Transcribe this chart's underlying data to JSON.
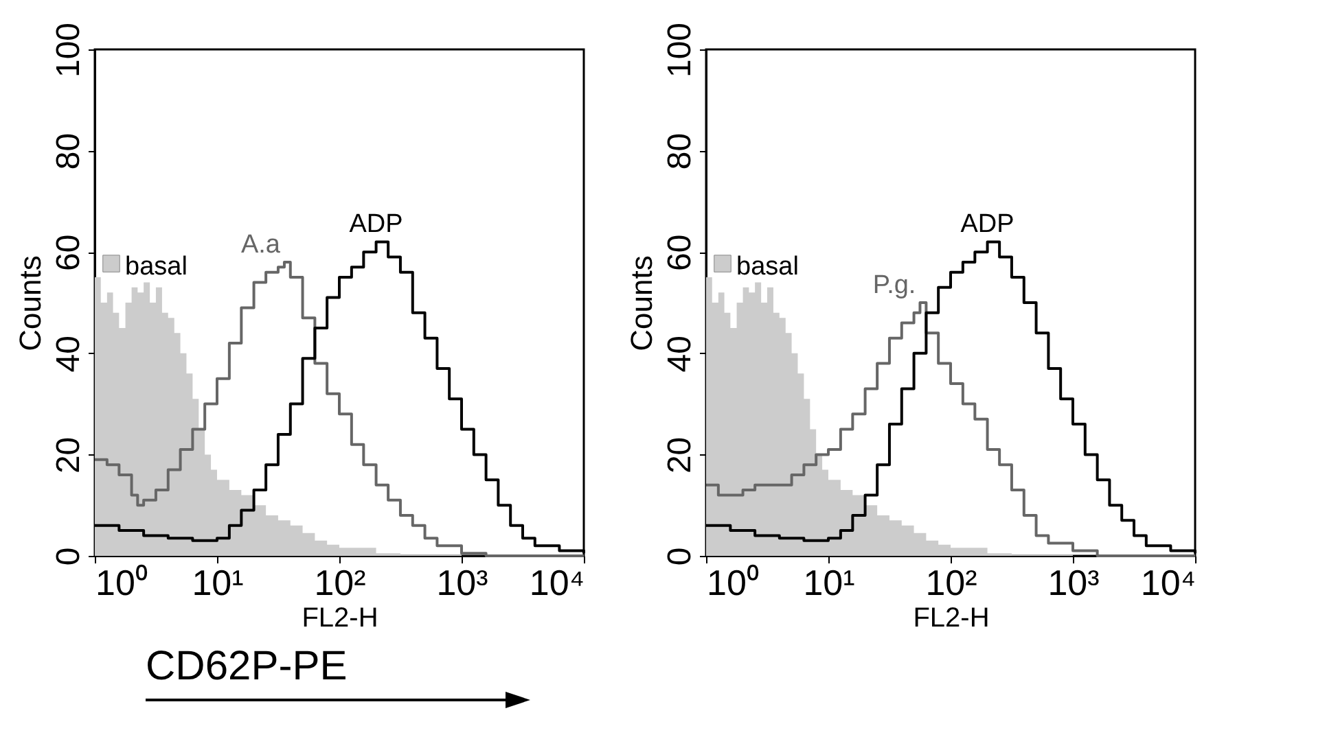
{
  "chart_data": [
    {
      "type": "step",
      "xlabel": "FL2-H",
      "ylabel": "Counts",
      "log": "x",
      "xlim": [
        1,
        10000
      ],
      "ylim": [
        0,
        100
      ],
      "grid": false,
      "xticks": [
        {
          "value": 1,
          "label": "10⁰"
        },
        {
          "value": 10,
          "label": "10¹"
        },
        {
          "value": 100,
          "label": "10²"
        },
        {
          "value": 1000,
          "label": "10³"
        },
        {
          "value": 10000,
          "label": "10⁴"
        }
      ],
      "yticks": [
        0,
        20,
        40,
        60,
        80,
        100
      ],
      "annotations": [
        "CD62P-PE"
      ],
      "series": [
        {
          "name": "basal",
          "type": "area",
          "color": "#cccccc",
          "x": [
            1,
            1.12,
            1.26,
            1.41,
            1.58,
            1.78,
            2,
            2.24,
            2.51,
            2.82,
            3.16,
            3.55,
            3.98,
            4.47,
            5.01,
            5.62,
            6.31,
            7.08,
            7.94,
            8.91,
            10,
            12.6,
            15.8,
            20,
            25.1,
            31.6,
            39.8,
            50.1,
            63.1,
            79.4,
            100,
            200,
            316,
            1000,
            10000
          ],
          "values": [
            55,
            50,
            52,
            48,
            45,
            50,
            53,
            52,
            54,
            50,
            53,
            48,
            47,
            44,
            40,
            36,
            31,
            25,
            20,
            17,
            15,
            13,
            12,
            10,
            8,
            7,
            6,
            4.5,
            3,
            2.2,
            1.6,
            0.5,
            0.2,
            0,
            0
          ]
        },
        {
          "name": "A.a",
          "type": "step",
          "color": "#666666",
          "x": [
            1,
            1.26,
            1.58,
            2,
            2.24,
            2.51,
            3.16,
            3.98,
            5.01,
            6.31,
            7.94,
            10,
            12.6,
            15.8,
            20,
            25.1,
            31.6,
            35.5,
            39.8,
            50.1,
            63.1,
            79.4,
            100,
            126,
            158,
            200,
            251,
            316,
            398,
            501,
            631,
            1000,
            1585,
            10000
          ],
          "values": [
            19,
            18,
            16,
            12,
            10,
            11,
            13,
            17,
            21,
            25,
            30,
            35,
            42,
            49,
            54,
            56,
            57,
            58,
            55,
            47,
            38,
            32,
            28,
            22,
            18,
            14,
            11,
            8,
            6,
            3.5,
            2,
            0.5,
            0,
            0
          ]
        },
        {
          "name": "ADP",
          "type": "step",
          "color": "#000000",
          "x": [
            1,
            1.58,
            2.51,
            3.98,
            6.31,
            10,
            12.6,
            15.8,
            20,
            25.1,
            31.6,
            39.8,
            50.1,
            63.1,
            79.4,
            100,
            126,
            158,
            200,
            251,
            316,
            398,
            501,
            631,
            794,
            1000,
            1259,
            1585,
            1995,
            2512,
            3162,
            3981,
            6310,
            10000
          ],
          "values": [
            6,
            5,
            4,
            3.5,
            3,
            3.5,
            6,
            9,
            13,
            18,
            24,
            30,
            39,
            45,
            51,
            55,
            57,
            60,
            62,
            59,
            56,
            48,
            43,
            37,
            31,
            25,
            20,
            15,
            10,
            6,
            3.5,
            2,
            1,
            0.5
          ]
        }
      ]
    },
    {
      "type": "step",
      "xlabel": "FL2-H",
      "ylabel": "Counts",
      "log": "x",
      "xlim": [
        1,
        10000
      ],
      "ylim": [
        0,
        100
      ],
      "grid": false,
      "xticks": [
        {
          "value": 1,
          "label": "10⁰"
        },
        {
          "value": 10,
          "label": "10¹"
        },
        {
          "value": 100,
          "label": "10²"
        },
        {
          "value": 1000,
          "label": "10³"
        },
        {
          "value": 10000,
          "label": "10⁴"
        }
      ],
      "yticks": [
        0,
        20,
        40,
        60,
        80,
        100
      ],
      "series": [
        {
          "name": "basal",
          "type": "area",
          "color": "#cccccc",
          "x": [
            1,
            1.12,
            1.26,
            1.41,
            1.58,
            1.78,
            2,
            2.24,
            2.51,
            2.82,
            3.16,
            3.55,
            3.98,
            4.47,
            5.01,
            5.62,
            6.31,
            7.08,
            7.94,
            8.91,
            10,
            12.6,
            15.8,
            20,
            25.1,
            31.6,
            39.8,
            50.1,
            63.1,
            79.4,
            100,
            200,
            316,
            1000,
            10000
          ],
          "values": [
            55,
            50,
            52,
            48,
            45,
            50,
            53,
            52,
            54,
            50,
            53,
            48,
            47,
            44,
            40,
            36,
            31,
            25,
            20,
            17,
            15,
            13,
            12,
            10,
            8,
            7,
            6,
            4.5,
            3,
            2.2,
            1.6,
            0.5,
            0.2,
            0,
            0
          ]
        },
        {
          "name": "P.g.",
          "type": "step",
          "color": "#666666",
          "x": [
            1,
            1.26,
            1.58,
            2,
            2.51,
            3.16,
            3.98,
            5.01,
            6.31,
            7.94,
            10,
            12.6,
            15.8,
            20,
            25.1,
            31.6,
            39.8,
            50.1,
            56.2,
            63.1,
            79.4,
            100,
            126,
            158,
            200,
            251,
            316,
            398,
            501,
            631,
            1000,
            1585,
            10000
          ],
          "values": [
            14,
            12,
            12,
            13,
            14,
            14,
            14,
            16,
            18,
            20,
            21,
            25,
            28,
            33,
            38,
            43,
            46,
            48,
            50,
            44,
            38,
            34,
            30,
            27,
            21,
            18,
            13,
            8,
            4,
            2.5,
            1,
            0,
            0
          ]
        },
        {
          "name": "ADP",
          "type": "step",
          "color": "#000000",
          "x": [
            1,
            1.58,
            2.51,
            3.98,
            6.31,
            10,
            12.6,
            15.8,
            20,
            25.1,
            31.6,
            39.8,
            50.1,
            63.1,
            79.4,
            100,
            126,
            158,
            200,
            251,
            316,
            398,
            501,
            631,
            794,
            1000,
            1259,
            1585,
            1995,
            2512,
            3162,
            3981,
            6310,
            10000
          ],
          "values": [
            6,
            5,
            4,
            3.5,
            3,
            3.5,
            5,
            8,
            12,
            18,
            26,
            33,
            40,
            48,
            53,
            56,
            58,
            60,
            62,
            59,
            55,
            50,
            44,
            37,
            31,
            26,
            20,
            15,
            10,
            7,
            4,
            2,
            1,
            0.5
          ]
        }
      ]
    }
  ]
}
